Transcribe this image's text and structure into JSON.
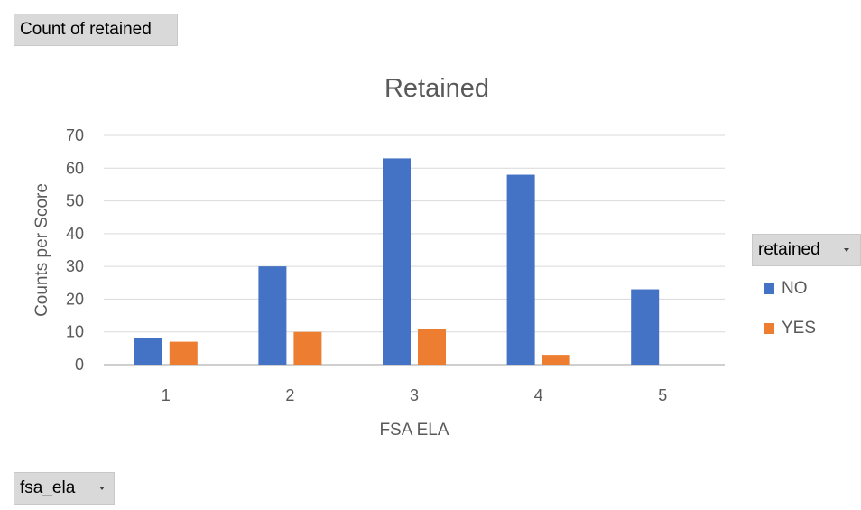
{
  "pivot": {
    "value_field_label": "Count of retained",
    "axis_field_label": "fsa_ela",
    "legend_field_label": "retained"
  },
  "chart_data": {
    "type": "bar",
    "title": "Retained",
    "xlabel": "FSA ELA",
    "ylabel": "Counts per Score",
    "categories": [
      "1",
      "2",
      "3",
      "4",
      "5"
    ],
    "series": [
      {
        "name": "NO",
        "values": [
          8,
          30,
          63,
          58,
          23
        ],
        "color": "#4472c4"
      },
      {
        "name": "YES",
        "values": [
          7,
          10,
          11,
          3,
          null
        ],
        "color": "#ed7d31"
      }
    ],
    "ylim": [
      0,
      70
    ],
    "yticks": [
      0,
      10,
      20,
      30,
      40,
      50,
      60,
      70
    ],
    "grid": true,
    "legend_position": "right"
  }
}
